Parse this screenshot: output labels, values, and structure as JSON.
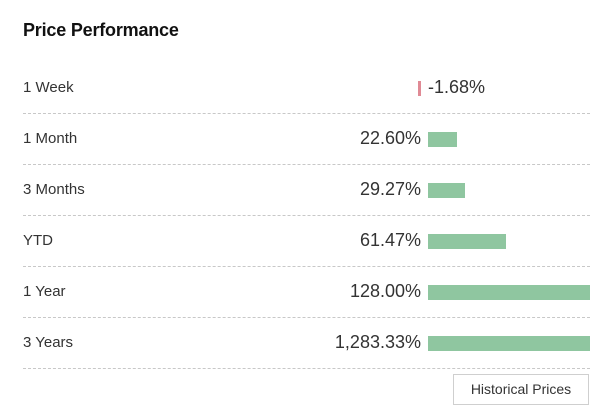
{
  "widget": {
    "title": "Price Performance",
    "historical_button_label": "Historical Prices"
  },
  "colors": {
    "positive_bar": "#8fc6a0",
    "negative_bar": "#e08a95"
  },
  "performance": [
    {
      "period": "1 Week",
      "value": "-1.68%",
      "change": -1.68
    },
    {
      "period": "1 Month",
      "value": "22.60%",
      "change": 22.6
    },
    {
      "period": "3 Months",
      "value": "29.27%",
      "change": 29.27
    },
    {
      "period": "YTD",
      "value": "61.47%",
      "change": 61.47
    },
    {
      "period": "1 Year",
      "value": "128.00%",
      "change": 128.0
    },
    {
      "period": "3 Years",
      "value": "1,283.33%",
      "change": 1283.33
    }
  ]
}
